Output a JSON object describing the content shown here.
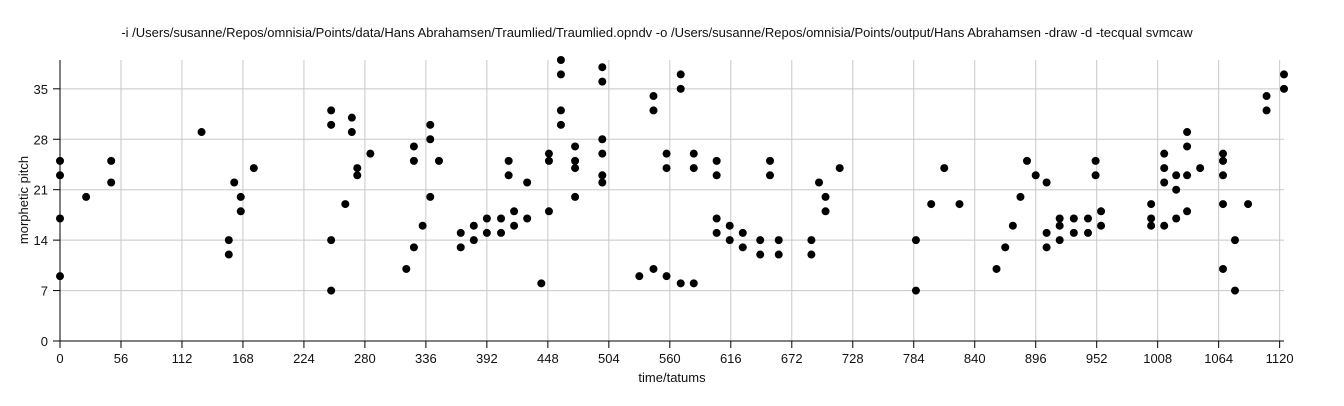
{
  "chart_data": {
    "type": "scatter",
    "title": "-i /Users/susanne/Repos/omnisia/Points/data/Hans Abrahamsen/Traumlied/Traumlied.opndv -o /Users/susanne/Repos/omnisia/Points/output/Hans Abrahamsen -draw -d -tecqual svmcaw",
    "xlabel": "time/tatums",
    "ylabel": "morphetic pitch",
    "xlim": [
      0,
      1124
    ],
    "ylim": [
      0,
      39
    ],
    "x_ticks": [
      0,
      56,
      112,
      168,
      224,
      280,
      336,
      392,
      448,
      504,
      560,
      616,
      672,
      728,
      784,
      840,
      896,
      952,
      1008,
      1064,
      1120
    ],
    "y_ticks": [
      0,
      7,
      14,
      21,
      28,
      35
    ],
    "grid": true,
    "legend": "none",
    "point_color": "#000000",
    "grid_color": "#c8c8c8",
    "points": [
      [
        0,
        9
      ],
      [
        0,
        17
      ],
      [
        0,
        23
      ],
      [
        0,
        25
      ],
      [
        24,
        20
      ],
      [
        47,
        22
      ],
      [
        47,
        25
      ],
      [
        130,
        29
      ],
      [
        155,
        12
      ],
      [
        155,
        14
      ],
      [
        160,
        22
      ],
      [
        166,
        18
      ],
      [
        166,
        20
      ],
      [
        178,
        24
      ],
      [
        249,
        7
      ],
      [
        249,
        14
      ],
      [
        249,
        30
      ],
      [
        249,
        32
      ],
      [
        262,
        19
      ],
      [
        268,
        29
      ],
      [
        268,
        31
      ],
      [
        273,
        23
      ],
      [
        273,
        24
      ],
      [
        285,
        26
      ],
      [
        318,
        10
      ],
      [
        325,
        13
      ],
      [
        325,
        25
      ],
      [
        325,
        27
      ],
      [
        333,
        16
      ],
      [
        340,
        20
      ],
      [
        340,
        28
      ],
      [
        340,
        30
      ],
      [
        348,
        25
      ],
      [
        368,
        13
      ],
      [
        368,
        15
      ],
      [
        380,
        14
      ],
      [
        380,
        16
      ],
      [
        392,
        15
      ],
      [
        392,
        17
      ],
      [
        405,
        15
      ],
      [
        405,
        17
      ],
      [
        412,
        23
      ],
      [
        412,
        25
      ],
      [
        417,
        16
      ],
      [
        417,
        18
      ],
      [
        429,
        17
      ],
      [
        429,
        22
      ],
      [
        442,
        8
      ],
      [
        449,
        18
      ],
      [
        449,
        25
      ],
      [
        449,
        26
      ],
      [
        460,
        30
      ],
      [
        460,
        32
      ],
      [
        460,
        37
      ],
      [
        460,
        39
      ],
      [
        473,
        20
      ],
      [
        473,
        24
      ],
      [
        473,
        25
      ],
      [
        473,
        27
      ],
      [
        498,
        22
      ],
      [
        498,
        23
      ],
      [
        498,
        26
      ],
      [
        498,
        28
      ],
      [
        498,
        36
      ],
      [
        498,
        38
      ],
      [
        532,
        9
      ],
      [
        545,
        10
      ],
      [
        545,
        32
      ],
      [
        545,
        34
      ],
      [
        557,
        9
      ],
      [
        557,
        24
      ],
      [
        557,
        26
      ],
      [
        570,
        8
      ],
      [
        570,
        35
      ],
      [
        570,
        37
      ],
      [
        582,
        8
      ],
      [
        582,
        24
      ],
      [
        582,
        26
      ],
      [
        603,
        15
      ],
      [
        603,
        17
      ],
      [
        603,
        23
      ],
      [
        603,
        25
      ],
      [
        615,
        14
      ],
      [
        615,
        16
      ],
      [
        627,
        13
      ],
      [
        627,
        15
      ],
      [
        643,
        12
      ],
      [
        643,
        14
      ],
      [
        652,
        23
      ],
      [
        652,
        25
      ],
      [
        660,
        12
      ],
      [
        660,
        14
      ],
      [
        690,
        12
      ],
      [
        690,
        14
      ],
      [
        697,
        22
      ],
      [
        703,
        18
      ],
      [
        703,
        20
      ],
      [
        716,
        24
      ],
      [
        786,
        7
      ],
      [
        786,
        14
      ],
      [
        800,
        19
      ],
      [
        812,
        24
      ],
      [
        826,
        19
      ],
      [
        860,
        10
      ],
      [
        868,
        13
      ],
      [
        875,
        16
      ],
      [
        882,
        20
      ],
      [
        888,
        25
      ],
      [
        896,
        23
      ],
      [
        906,
        13
      ],
      [
        906,
        15
      ],
      [
        906,
        22
      ],
      [
        918,
        14
      ],
      [
        918,
        16
      ],
      [
        918,
        17
      ],
      [
        931,
        15
      ],
      [
        931,
        17
      ],
      [
        944,
        15
      ],
      [
        944,
        17
      ],
      [
        951,
        23
      ],
      [
        951,
        25
      ],
      [
        956,
        16
      ],
      [
        956,
        18
      ],
      [
        1002,
        16
      ],
      [
        1002,
        17
      ],
      [
        1002,
        19
      ],
      [
        1014,
        16
      ],
      [
        1014,
        22
      ],
      [
        1014,
        24
      ],
      [
        1014,
        26
      ],
      [
        1025,
        17
      ],
      [
        1025,
        21
      ],
      [
        1025,
        23
      ],
      [
        1035,
        18
      ],
      [
        1035,
        23
      ],
      [
        1035,
        27
      ],
      [
        1035,
        29
      ],
      [
        1047,
        24
      ],
      [
        1068,
        10
      ],
      [
        1068,
        19
      ],
      [
        1068,
        23
      ],
      [
        1068,
        25
      ],
      [
        1068,
        26
      ],
      [
        1079,
        7
      ],
      [
        1079,
        14
      ],
      [
        1091,
        19
      ],
      [
        1108,
        32
      ],
      [
        1108,
        34
      ],
      [
        1124,
        35
      ],
      [
        1124,
        37
      ]
    ]
  }
}
